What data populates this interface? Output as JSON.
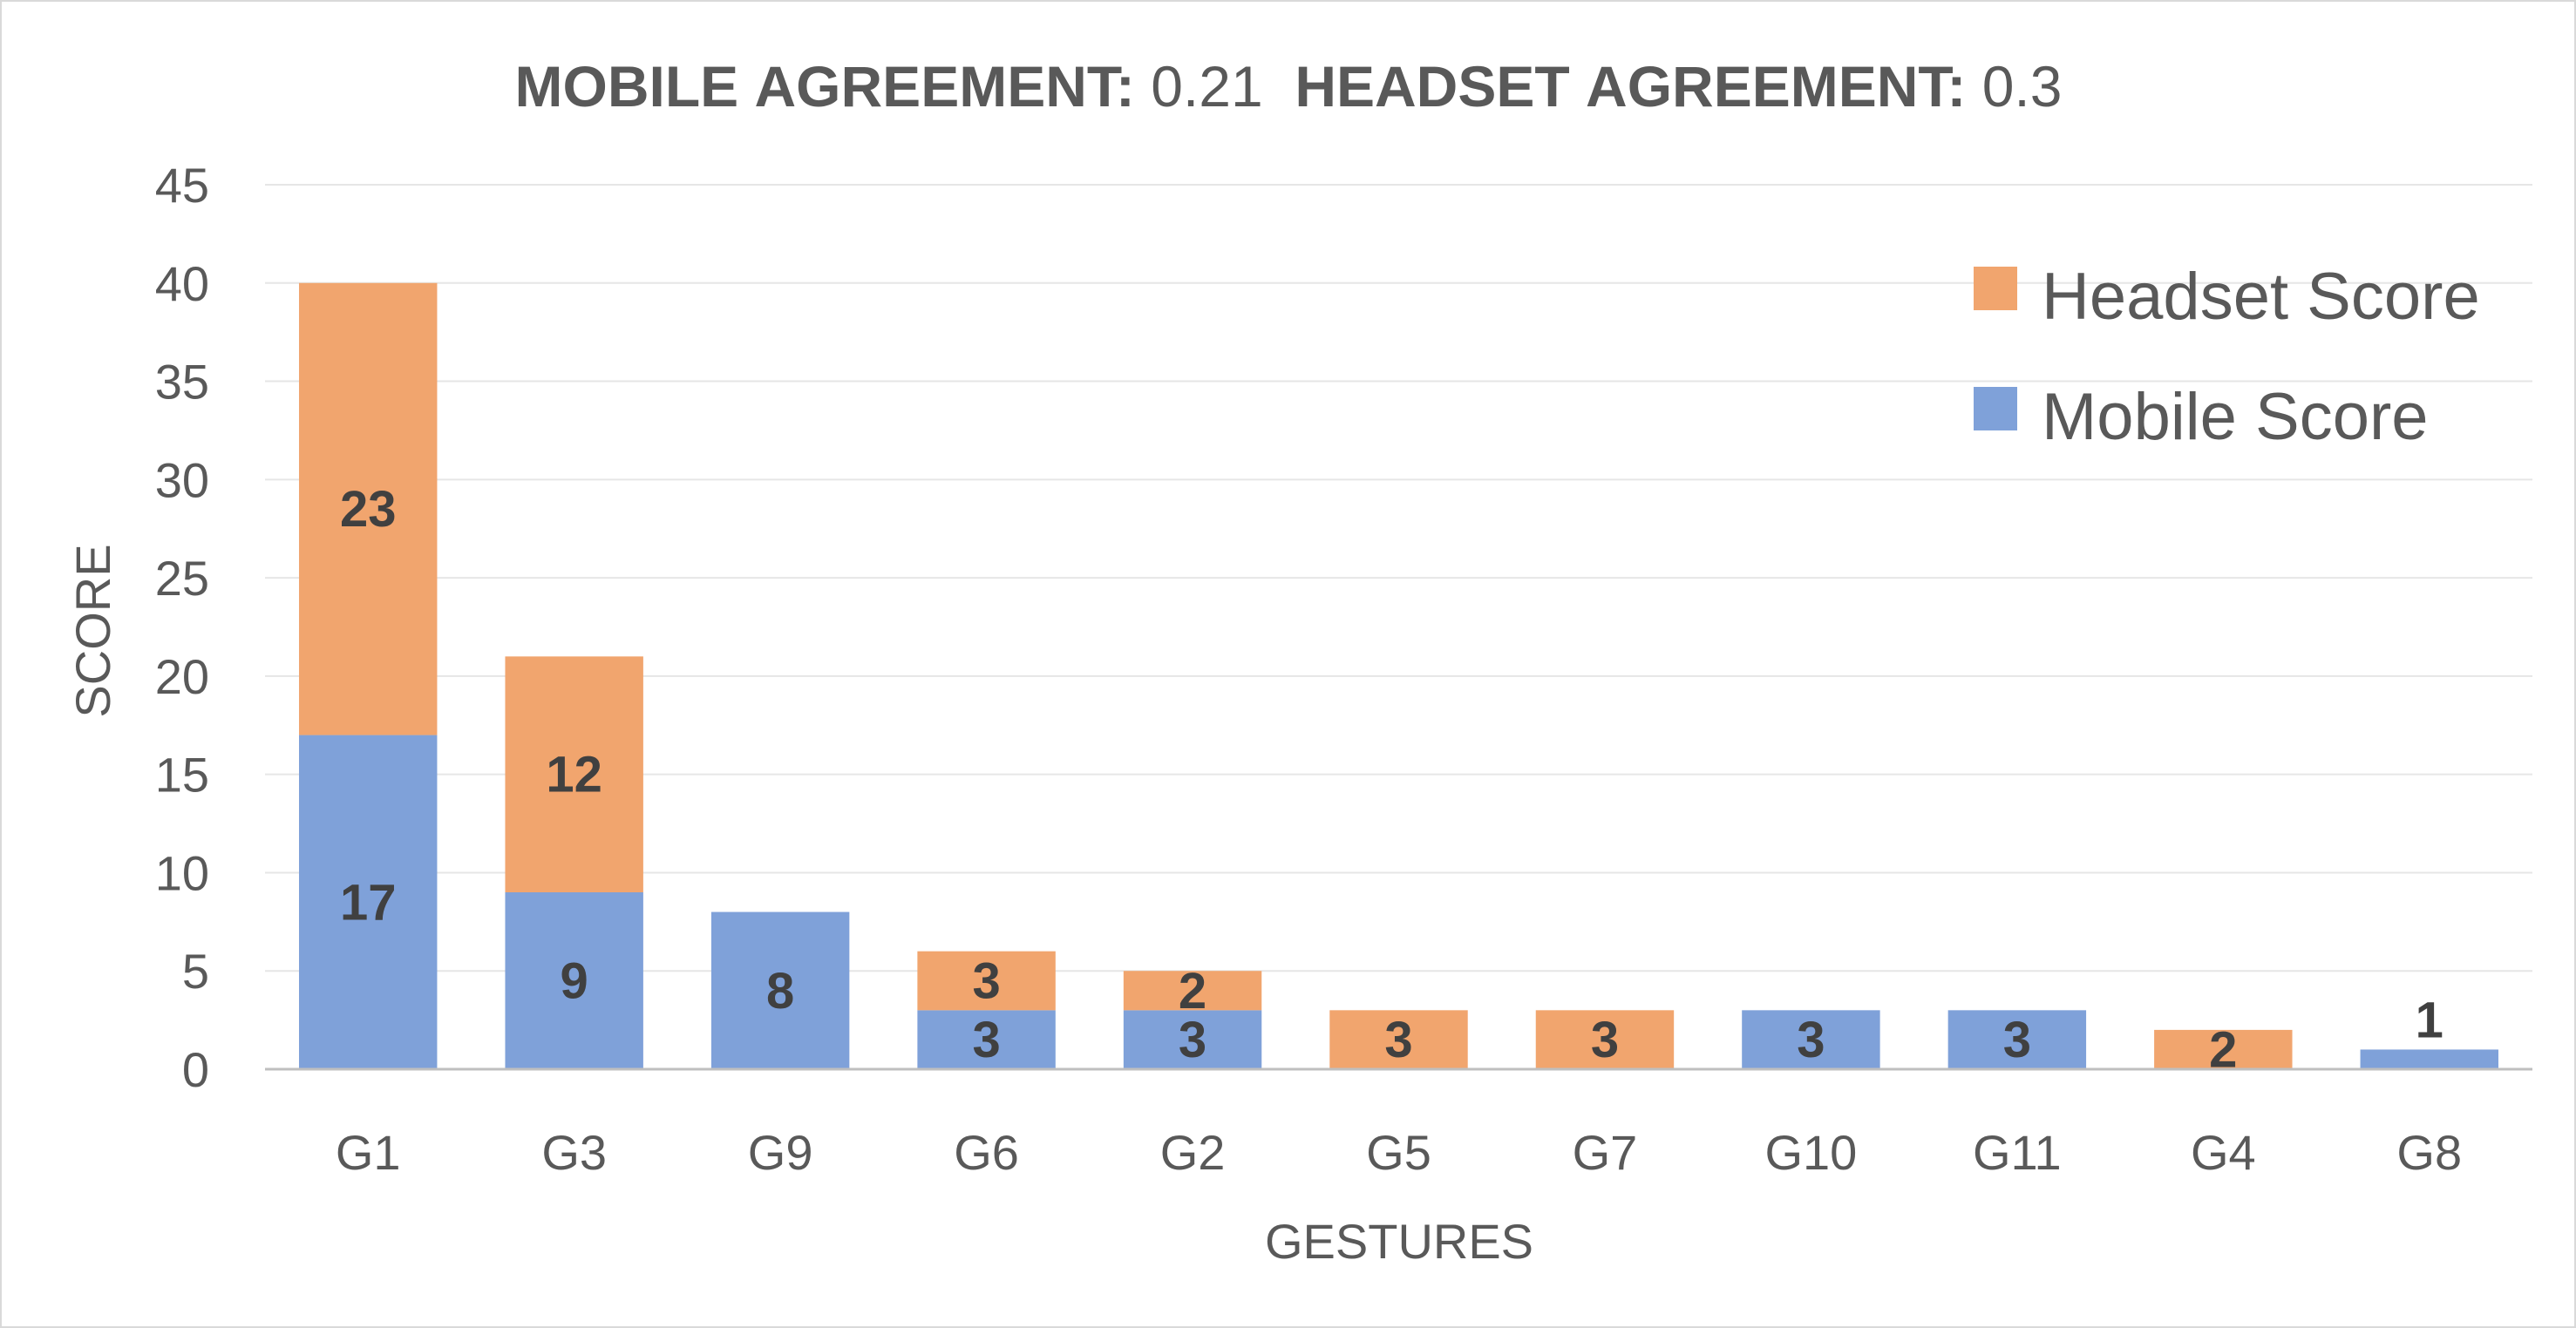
{
  "chart_data": {
    "type": "bar",
    "stacked": true,
    "title_parts": [
      {
        "text": "MOBILE AGREEMENT:",
        "bold": true
      },
      {
        "text": " 0.21  ",
        "bold": false
      },
      {
        "text": "HEADSET AGREEMENT:",
        "bold": true
      },
      {
        "text": " 0.3",
        "bold": false
      }
    ],
    "xlabel": "GESTURES",
    "ylabel": "SCORE",
    "ylim": [
      0,
      45
    ],
    "yticks": [
      0,
      5,
      10,
      15,
      20,
      25,
      30,
      35,
      40,
      45
    ],
    "grid": true,
    "legend_position": "top-right",
    "categories": [
      "G1",
      "G3",
      "G9",
      "G6",
      "G2",
      "G5",
      "G7",
      "G10",
      "G11",
      "G4",
      "G8"
    ],
    "series": [
      {
        "name": "Mobile Score",
        "color": "#7fa1d9",
        "values": [
          17,
          9,
          8,
          3,
          3,
          0,
          0,
          3,
          3,
          0,
          1
        ]
      },
      {
        "name": "Headset Score",
        "color": "#f1a56e",
        "values": [
          23,
          12,
          0,
          3,
          2,
          3,
          3,
          0,
          0,
          2,
          0
        ]
      }
    ],
    "legend_order": [
      1,
      0
    ]
  }
}
